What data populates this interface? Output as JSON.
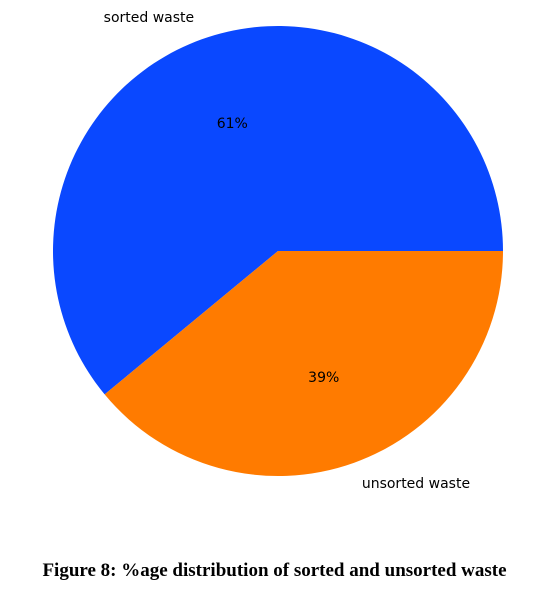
{
  "caption": "Figure 8: %age distribution of sorted and unsorted waste",
  "chart_data": {
    "type": "pie",
    "title": "",
    "slices": [
      {
        "label": "sorted waste",
        "value": 61,
        "pct_label": "61%",
        "color": "#0a48ff"
      },
      {
        "label": "unsorted waste",
        "value": 39,
        "pct_label": "39%",
        "color": "#ff7b00"
      }
    ],
    "start_angle": "3 o'clock",
    "direction": "counterclockwise",
    "legend": "none"
  }
}
